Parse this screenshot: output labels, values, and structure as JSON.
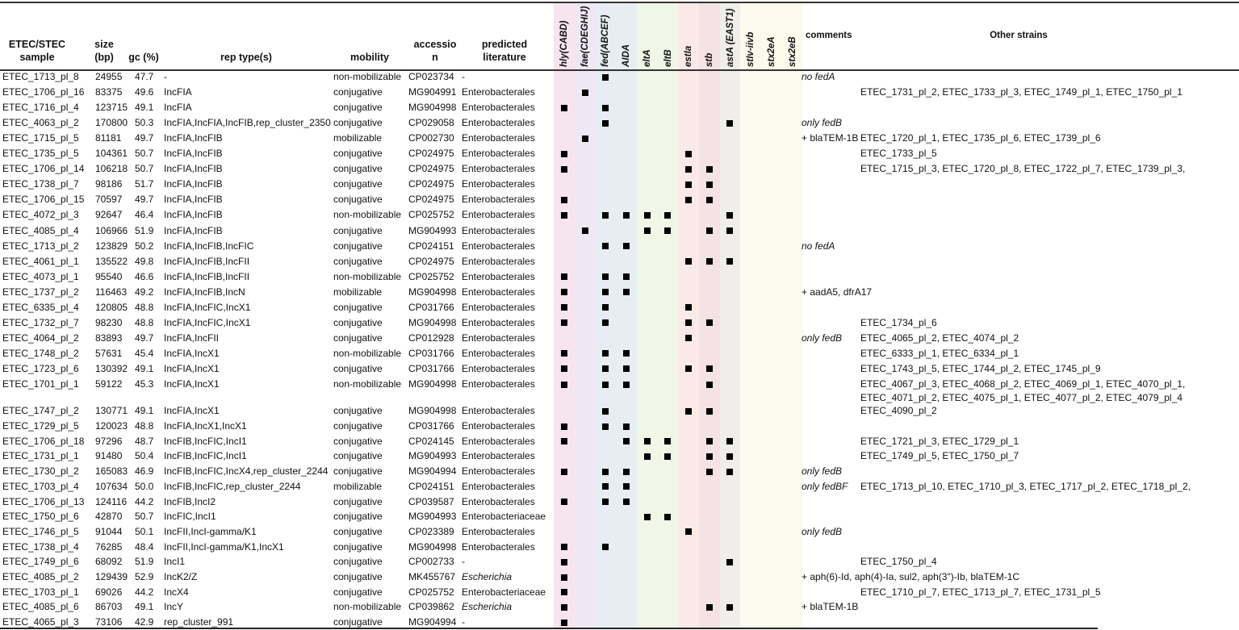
{
  "headers": {
    "sample": [
      "ETEC/STEC",
      "sample"
    ],
    "size": [
      "size",
      "(bp)"
    ],
    "gc": "gc (%)",
    "rep": "rep type(s)",
    "mobility": "mobility",
    "accession": [
      "accessio",
      "n"
    ],
    "predicted": [
      "predicted",
      "literature"
    ],
    "comments": "comments",
    "other": "Other strains"
  },
  "genes": [
    "hly(CABD)",
    "fae(CDEGHIJ)",
    "fed(ABCEF)",
    "AIDA",
    "eltA",
    "eltB",
    "estIa",
    "stb",
    "astA (EAST1)",
    "stIv-iivb",
    "stx2eA",
    "stx2eB"
  ],
  "gene_colors": [
    "#f7e4ee",
    "#efe7f4",
    "#e6eef3",
    "#e6eef3",
    "#f1f7e7",
    "#f1f7e7",
    "#fbe9e8",
    "#f4e2e5",
    "#efeeea",
    "#fbfaec",
    "#fbfaec",
    "#fbfaec"
  ],
  "rows": [
    {
      "sample": "ETEC_1713_pl_8",
      "size": "24955",
      "gc": "47.7",
      "rep": "-",
      "mobility": "non-mobilizable",
      "accession": "CP023734",
      "predicted": "-",
      "marks": [
        2
      ],
      "comment": "no fedA",
      "other": ""
    },
    {
      "sample": "ETEC_1706_pl_16",
      "size": "83375",
      "gc": "49.6",
      "rep": "IncFIA",
      "mobility": "conjugative",
      "accession": "MG904991",
      "predicted": "Enterobacterales",
      "marks": [
        1
      ],
      "comment": "",
      "other": "ETEC_1731_pl_2, ETEC_1733_pl_3, ETEC_1749_pl_1, ETEC_1750_pl_1"
    },
    {
      "sample": "ETEC_1716_pl_4",
      "size": "123715",
      "gc": "49.1",
      "rep": "IncFIA",
      "mobility": "conjugative",
      "accession": "MG904998",
      "predicted": "Enterobacterales",
      "marks": [
        0,
        2
      ],
      "comment": "",
      "other": ""
    },
    {
      "sample": "ETEC_4063_pl_2",
      "size": "170800",
      "gc": "50.3",
      "rep": "IncFIA,IncFIA,IncFIB,rep_cluster_2350",
      "mobility": "conjugative",
      "accession": "CP029058",
      "predicted": "Enterobacterales",
      "marks": [
        2,
        8
      ],
      "comment": "only fedB",
      "other": ""
    },
    {
      "sample": "ETEC_1715_pl_5",
      "size": "81181",
      "gc": "49.7",
      "rep": "IncFIA,IncFIB",
      "mobility": "mobilizable",
      "accession": "CP002730",
      "predicted": "Enterobacterales",
      "marks": [
        1
      ],
      "comment": "+ blaTEM-1B",
      "other": "ETEC_1720_pl_1, ETEC_1735_pl_6, ETEC_1739_pl_6"
    },
    {
      "sample": "ETEC_1735_pl_5",
      "size": "104361",
      "gc": "50.7",
      "rep": "IncFIA,IncFIB",
      "mobility": "conjugative",
      "accession": "CP024975",
      "predicted": "Enterobacterales",
      "marks": [
        0,
        6
      ],
      "comment": "",
      "other": "ETEC_1733_pl_5"
    },
    {
      "sample": "ETEC_1706_pl_14",
      "size": "106218",
      "gc": "50.7",
      "rep": "IncFIA,IncFIB",
      "mobility": "conjugative",
      "accession": "CP024975",
      "predicted": "Enterobacterales",
      "marks": [
        0,
        6,
        7
      ],
      "comment": "",
      "other": "ETEC_1715_pl_3, ETEC_1720_pl_8, ETEC_1722_pl_7, ETEC_1739_pl_3,"
    },
    {
      "sample": "ETEC_1738_pl_7",
      "size": "98186",
      "gc": "51.7",
      "rep": "IncFIA,IncFIB",
      "mobility": "conjugative",
      "accession": "CP024975",
      "predicted": "Enterobacterales",
      "marks": [
        6,
        7
      ],
      "comment": "",
      "other": ""
    },
    {
      "sample": "ETEC_1706_pl_15",
      "size": "70597",
      "gc": "49.7",
      "rep": "IncFIA,IncFIB",
      "mobility": "conjugative",
      "accession": "CP024975",
      "predicted": "Enterobacterales",
      "marks": [
        0,
        6,
        7
      ],
      "comment": "",
      "other": ""
    },
    {
      "sample": "ETEC_4072_pl_3",
      "size": "92647",
      "gc": "46.4",
      "rep": "IncFIA,IncFIB",
      "mobility": "non-mobilizable",
      "accession": "CP025752",
      "predicted": "Enterobacterales",
      "marks": [
        0,
        2,
        3,
        4,
        5,
        8
      ],
      "comment": "",
      "other": ""
    },
    {
      "sample": "ETEC_4085_pl_4",
      "size": "106966",
      "gc": "51.9",
      "rep": "IncFIA,IncFIB",
      "mobility": "conjugative",
      "accession": "MG904993",
      "predicted": "Enterobacterales",
      "marks": [
        1,
        4,
        5,
        7,
        8
      ],
      "comment": "",
      "other": ""
    },
    {
      "sample": "ETEC_1713_pl_2",
      "size": "123829",
      "gc": "50.2",
      "rep": "IncFIA,IncFIB,IncFIC",
      "mobility": "conjugative",
      "accession": "CP024151",
      "predicted": "Enterobacterales",
      "marks": [
        2,
        3
      ],
      "comment": "no fedA",
      "other": ""
    },
    {
      "sample": "ETEC_4061_pl_1",
      "size": "135522",
      "gc": "49.8",
      "rep": "IncFIA,IncFIB,IncFII",
      "mobility": "conjugative",
      "accession": "CP024975",
      "predicted": "Enterobacterales",
      "marks": [
        6,
        7,
        8
      ],
      "comment": "",
      "other": ""
    },
    {
      "sample": "ETEC_4073_pl_1",
      "size": "95540",
      "gc": "46.6",
      "rep": "IncFIA,IncFIB,IncFII",
      "mobility": "non-mobilizable",
      "accession": "CP025752",
      "predicted": "Enterobacterales",
      "marks": [
        0,
        2,
        3
      ],
      "comment": "",
      "other": ""
    },
    {
      "sample": "ETEC_1737_pl_2",
      "size": "116463",
      "gc": "49.2",
      "rep": "IncFIA,IncFIB,IncN",
      "mobility": "mobilizable",
      "accession": "MG904998",
      "predicted": "Enterobacterales",
      "marks": [
        0,
        2,
        3
      ],
      "comment": "+ aadA5, dfrA17",
      "other": ""
    },
    {
      "sample": "ETEC_6335_pl_4",
      "size": "120805",
      "gc": "48.8",
      "rep": "IncFIA,IncFIC,IncX1",
      "mobility": "conjugative",
      "accession": "CP031766",
      "predicted": "Enterobacterales",
      "marks": [
        0,
        2,
        6
      ],
      "comment": "",
      "other": ""
    },
    {
      "sample": "ETEC_1732_pl_7",
      "size": "98230",
      "gc": "48.8",
      "rep": "IncFIA,IncFIC,IncX1",
      "mobility": "conjugative",
      "accession": "MG904998",
      "predicted": "Enterobacterales",
      "marks": [
        0,
        2,
        6,
        7
      ],
      "comment": "",
      "other": "ETEC_1734_pl_6"
    },
    {
      "sample": "ETEC_4064_pl_2",
      "size": "83893",
      "gc": "49.7",
      "rep": "IncFIA,IncFII",
      "mobility": "conjugative",
      "accession": "CP012928",
      "predicted": "Enterobacterales",
      "marks": [
        6
      ],
      "comment": "only fedB",
      "other": "ETEC_4065_pl_2, ETEC_4074_pl_2"
    },
    {
      "sample": "ETEC_1748_pl_2",
      "size": "57631",
      "gc": "45.4",
      "rep": "IncFIA,IncX1",
      "mobility": "non-mobilizable",
      "accession": "CP031766",
      "predicted": "Enterobacterales",
      "marks": [
        0,
        2,
        3
      ],
      "comment": "",
      "other": "ETEC_6333_pl_1, ETEC_6334_pl_1"
    },
    {
      "sample": "ETEC_1723_pl_6",
      "size": "130392",
      "gc": "49.1",
      "rep": "IncFIA,IncX1",
      "mobility": "conjugative",
      "accession": "CP031766",
      "predicted": "Enterobacterales",
      "marks": [
        0,
        2,
        3,
        6,
        7
      ],
      "comment": "",
      "other": "ETEC_1743_pl_5, ETEC_1744_pl_2, ETEC_1745_pl_9"
    },
    {
      "sample": "ETEC_1701_pl_1",
      "size": "59122",
      "gc": "45.3",
      "rep": "IncFIA,IncX1",
      "mobility": "non-mobilizable",
      "accession": "MG904998",
      "predicted": "Enterobacterales",
      "marks": [
        0,
        2,
        3,
        7
      ],
      "comment": "",
      "other": "ETEC_4067_pl_3, ETEC_4068_pl_2, ETEC_4069_pl_1, ETEC_4070_pl_1, ETEC_4071_pl_2, ETEC_4075_pl_1, ETEC_4077_pl_2, ETEC_4079_pl_4 ETEC_4090_pl_2"
    },
    {
      "sample": "ETEC_1747_pl_2",
      "size": "130771",
      "gc": "49.1",
      "rep": "IncFIA,IncX1",
      "mobility": "conjugative",
      "accession": "MG904998",
      "predicted": "Enterobacterales",
      "marks": [
        2,
        6,
        7
      ],
      "comment": "",
      "other": ""
    },
    {
      "sample": "ETEC_1729_pl_5",
      "size": "120023",
      "gc": "48.8",
      "rep": "IncFIA,IncX1,IncX1",
      "mobility": "conjugative",
      "accession": "CP031766",
      "predicted": "Enterobacterales",
      "marks": [
        0,
        2,
        3
      ],
      "comment": "",
      "other": ""
    },
    {
      "sample": "ETEC_1706_pl_18",
      "size": "97296",
      "gc": "48.7",
      "rep": "IncFIB,IncFIC,IncI1",
      "mobility": "conjugative",
      "accession": "CP024145",
      "predicted": "Enterobacterales",
      "marks": [
        0,
        3,
        4,
        5,
        7,
        8
      ],
      "comment": "",
      "other": "ETEC_1721_pl_3, ETEC_1729_pl_1"
    },
    {
      "sample": "ETEC_1731_pl_1",
      "size": "91480",
      "gc": "50.4",
      "rep": "IncFIB,IncFIC,IncI1",
      "mobility": "conjugative",
      "accession": "MG904993",
      "predicted": "Enterobacterales",
      "marks": [
        4,
        5,
        7,
        8
      ],
      "comment": "",
      "other": "ETEC_1749_pl_5, ETEC_1750_pl_7"
    },
    {
      "sample": "ETEC_1730_pl_2",
      "size": "165083",
      "gc": "46.9",
      "rep": "IncFIB,IncFIC,IncX4,rep_cluster_2244",
      "mobility": "conjugative",
      "accession": "MG904994",
      "predicted": "Enterobacterales",
      "marks": [
        0,
        2,
        3,
        7,
        8
      ],
      "comment": "only fedB",
      "other": ""
    },
    {
      "sample": "ETEC_1703_pl_4",
      "size": "107634",
      "gc": "50.0",
      "rep": "IncFIB,IncFIC,rep_cluster_2244",
      "mobility": "mobilizable",
      "accession": "CP024151",
      "predicted": "Enterobacterales",
      "marks": [
        2,
        3
      ],
      "comment": "only fedBF",
      "other": "ETEC_1713_pl_10, ETEC_1710_pl_3, ETEC_1717_pl_2, ETEC_1718_pl_2,"
    },
    {
      "sample": "ETEC_1706_pl_13",
      "size": "124116",
      "gc": "44.2",
      "rep": "IncFIB,IncI2",
      "mobility": "conjugative",
      "accession": "CP039587",
      "predicted": "Enterobacterales",
      "marks": [
        0,
        2,
        3
      ],
      "comment": "",
      "other": ""
    },
    {
      "sample": "ETEC_1750_pl_6",
      "size": "42870",
      "gc": "50.7",
      "rep": "IncFIC,IncI1",
      "mobility": "conjugative",
      "accession": "MG904993",
      "predicted": "Enterobacteriaceae",
      "marks": [
        4,
        5
      ],
      "comment": "",
      "other": ""
    },
    {
      "sample": "ETEC_1746_pl_5",
      "size": "91044",
      "gc": "50.1",
      "rep": "IncFII,IncI-gamma/K1",
      "mobility": "conjugative",
      "accession": "CP023389",
      "predicted": "Enterobacterales",
      "marks": [
        6
      ],
      "comment": "only fedB",
      "other": ""
    },
    {
      "sample": "ETEC_1738_pl_4",
      "size": "76285",
      "gc": "48.4",
      "rep": "IncFII,IncI-gamma/K1,IncX1",
      "mobility": "conjugative",
      "accession": "MG904998",
      "predicted": "Enterobacterales",
      "marks": [
        0,
        2
      ],
      "comment": "",
      "other": ""
    },
    {
      "sample": "ETEC_1749_pl_6",
      "size": "68092",
      "gc": "51.9",
      "rep": "IncI1",
      "mobility": "conjugative",
      "accession": "CP002733",
      "predicted": "-",
      "marks": [
        0,
        8
      ],
      "comment": "",
      "other": "ETEC_1750_pl_4"
    },
    {
      "sample": "ETEC_4085_pl_2",
      "size": "129439",
      "gc": "52.9",
      "rep": "IncK2/Z",
      "mobility": "conjugative",
      "accession": "MK455767",
      "predicted": "Escherichia",
      "predicted_italic": true,
      "marks": [
        0
      ],
      "comment": "+ aph(6)-Id, aph(4)-Ia, sul2, aph(3\")-Ib, blaTEM-1C",
      "other": ""
    },
    {
      "sample": "ETEC_1703_pl_1",
      "size": "69026",
      "gc": "44.2",
      "rep": "IncX4",
      "mobility": "conjugative",
      "accession": "CP025752",
      "predicted": "Enterobacteriaceae",
      "marks": [
        0
      ],
      "comment": "",
      "other": "ETEC_1710_pl_7, ETEC_1713_pl_7, ETEC_1731_pl_5"
    },
    {
      "sample": "ETEC_4085_pl_6",
      "size": "86703",
      "gc": "49.1",
      "rep": "IncY",
      "mobility": "non-mobilizable",
      "accession": "CP039862",
      "predicted": "Escherichia",
      "predicted_italic": true,
      "marks": [
        0,
        7,
        8
      ],
      "comment": "+ blaTEM-1B",
      "other": ""
    },
    {
      "sample": "ETEC_4065_pl_3",
      "size": "73106",
      "gc": "42.9",
      "rep": "rep_cluster_991",
      "mobility": "conjugative",
      "accession": "MG904994",
      "predicted": "-",
      "marks": [
        0
      ],
      "comment": "",
      "other": ""
    }
  ]
}
